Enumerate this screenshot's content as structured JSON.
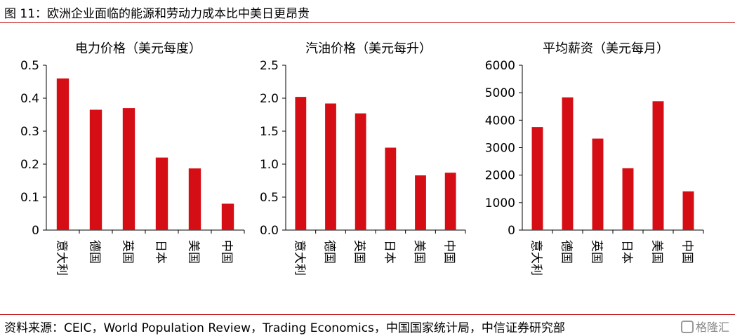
{
  "figure_title": "图 11：欧洲企业面临的能源和劳动力成本比中美日更昂贵",
  "source_text": "资料来源：CEIC，World Population Review，Trading Economics，中国国家统计局，中信证券研究部",
  "watermark": "格隆汇",
  "colors": {
    "bar": "#d40e14",
    "rule": "#c00000"
  },
  "chart_data": [
    {
      "type": "bar",
      "title": "电力价格（美元每度）",
      "categories": [
        "意大利",
        "德国",
        "英国",
        "日本",
        "美国",
        "中国"
      ],
      "values": [
        0.46,
        0.365,
        0.37,
        0.22,
        0.187,
        0.08
      ],
      "ylim": [
        0,
        0.5
      ],
      "ticks": [
        "0",
        "0.1",
        "0.2",
        "0.3",
        "0.4",
        "0.5"
      ],
      "xlabel": "",
      "ylabel": ""
    },
    {
      "type": "bar",
      "title": "汽油价格（美元每升）",
      "categories": [
        "意大利",
        "德国",
        "英国",
        "日本",
        "美国",
        "中国"
      ],
      "values": [
        2.02,
        1.92,
        1.77,
        1.25,
        0.83,
        0.87
      ],
      "ylim": [
        0,
        2.5
      ],
      "ticks": [
        "0.0",
        "0.5",
        "1.0",
        "1.5",
        "2.0",
        "2.5"
      ],
      "xlabel": "",
      "ylabel": ""
    },
    {
      "type": "bar",
      "title": "平均薪资（美元每月）",
      "categories": [
        "意大利",
        "德国",
        "英国",
        "日本",
        "美国",
        "中国"
      ],
      "values": [
        3750,
        4830,
        3330,
        2250,
        4690,
        1410
      ],
      "ylim": [
        0,
        6000
      ],
      "ticks": [
        "0",
        "1000",
        "2000",
        "3000",
        "4000",
        "5000",
        "6000"
      ],
      "xlabel": "",
      "ylabel": ""
    }
  ]
}
